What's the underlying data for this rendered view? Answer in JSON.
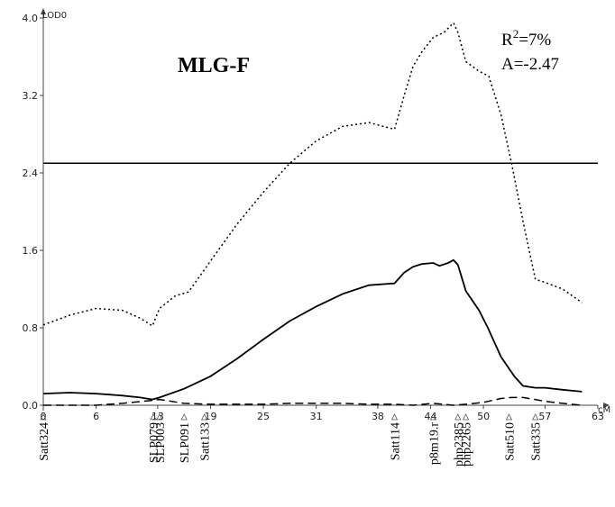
{
  "chart_data": {
    "type": "line",
    "title": "MLG-F",
    "ylabel": "LOD0",
    "xlabel": "cM",
    "xlim": [
      0,
      63
    ],
    "ylim": [
      0,
      4.0
    ],
    "x_ticks": [
      "0",
      "6",
      "13",
      "19",
      "25",
      "31",
      "38",
      "44",
      "50",
      "57",
      "63"
    ],
    "y_ticks": [
      "0.0",
      "0.8",
      "1.6",
      "2.4",
      "3.2",
      "4.0"
    ],
    "threshold": 2.5,
    "annotations": {
      "r2_base": "R",
      "r2_sup": "2",
      "r2_value": "=7%",
      "additive": "A=-2.47"
    },
    "markers": [
      {
        "name": "Satt324",
        "x": 0
      },
      {
        "name": "SLP079",
        "x": 12.5
      },
      {
        "name": "SLP003",
        "x": 13.2
      },
      {
        "name": "SLP091",
        "x": 16.0
      },
      {
        "name": "Satt133",
        "x": 18.3
      },
      {
        "name": "Satt114",
        "x": 39.9
      },
      {
        "name": "p8m19.r",
        "x": 44.3
      },
      {
        "name": "php2385",
        "x": 47.1
      },
      {
        "name": "php2265",
        "x": 48.0
      },
      {
        "name": "Satt510",
        "x": 52.9
      },
      {
        "name": "Satt335",
        "x": 55.9
      }
    ],
    "series": [
      {
        "style": "dotted",
        "x": [
          0,
          3,
          6,
          9,
          11,
          12.4,
          13.2,
          15,
          16.5,
          19,
          22,
          25,
          28,
          31,
          34,
          37,
          39.9,
          41,
          42,
          43,
          44.3,
          45.5,
          46.6,
          47.1,
          48,
          49.5,
          50.6,
          52,
          53.2,
          54.5,
          55.9,
          57,
          59,
          61.2
        ],
        "y": [
          0.83,
          0.93,
          1.0,
          0.98,
          0.9,
          0.82,
          1.0,
          1.13,
          1.17,
          1.49,
          1.87,
          2.2,
          2.5,
          2.73,
          2.88,
          2.92,
          2.85,
          3.2,
          3.5,
          3.65,
          3.8,
          3.85,
          3.95,
          3.85,
          3.55,
          3.45,
          3.4,
          3.0,
          2.5,
          1.9,
          1.3,
          1.27,
          1.2,
          1.06
        ]
      },
      {
        "style": "solid",
        "x": [
          0,
          3,
          6,
          9,
          11,
          12.4,
          13.2,
          16,
          19,
          22,
          25,
          28,
          31,
          34,
          37,
          39.9,
          41,
          42,
          43,
          44.3,
          45,
          46,
          46.6,
          47.1,
          48,
          49.5,
          50.5,
          52,
          53.5,
          54.5,
          55.9,
          57,
          59,
          61.2
        ],
        "y": [
          0.12,
          0.13,
          0.12,
          0.1,
          0.08,
          0.06,
          0.08,
          0.17,
          0.3,
          0.48,
          0.68,
          0.87,
          1.02,
          1.15,
          1.24,
          1.26,
          1.37,
          1.43,
          1.46,
          1.47,
          1.44,
          1.47,
          1.5,
          1.45,
          1.18,
          0.98,
          0.8,
          0.5,
          0.3,
          0.2,
          0.18,
          0.18,
          0.16,
          0.14
        ]
      },
      {
        "style": "dashed",
        "x": [
          0,
          6,
          9,
          12.4,
          13.2,
          16,
          19,
          22,
          25,
          28,
          31,
          34,
          37,
          39.9,
          42,
          44.3,
          46.6,
          48,
          50,
          52,
          53.2,
          54.5,
          55.9,
          57,
          59,
          61.2
        ],
        "y": [
          0.0,
          0.0,
          0.02,
          0.05,
          0.06,
          0.02,
          0.01,
          0.01,
          0.01,
          0.02,
          0.02,
          0.02,
          0.01,
          0.01,
          0.0,
          0.02,
          0.0,
          0.01,
          0.03,
          0.07,
          0.08,
          0.08,
          0.06,
          0.04,
          0.02,
          0.0
        ]
      }
    ]
  }
}
